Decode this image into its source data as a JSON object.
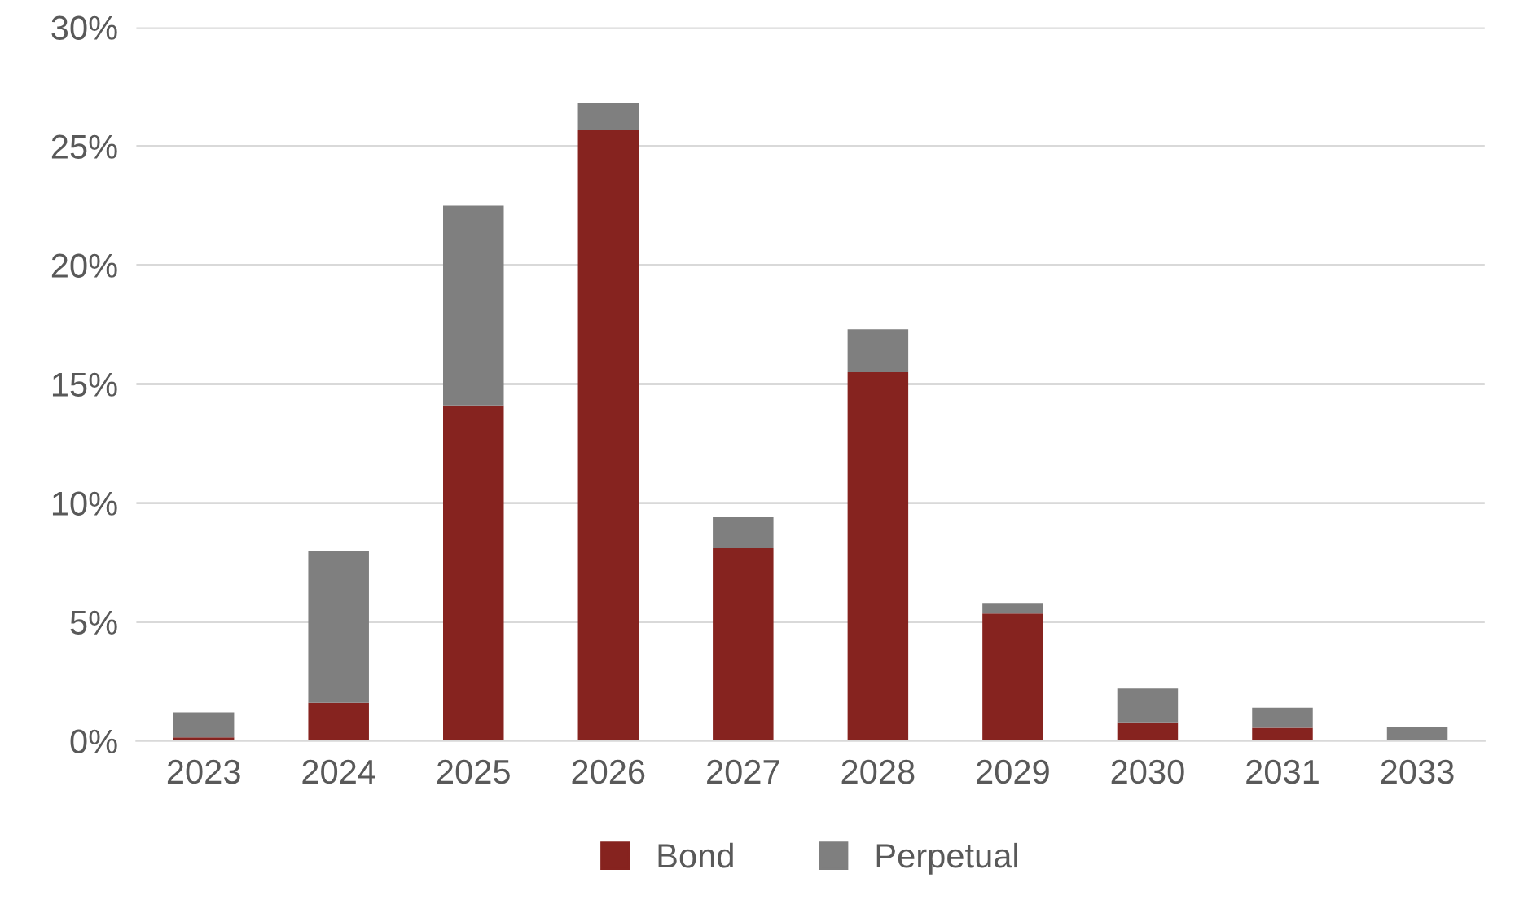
{
  "chart_data": {
    "type": "bar",
    "stacked": true,
    "categories": [
      "2023",
      "2024",
      "2025",
      "2026",
      "2027",
      "2028",
      "2029",
      "2030",
      "2031",
      "2033"
    ],
    "series": [
      {
        "name": "Bond",
        "color": "#86231f",
        "values": [
          0.15,
          1.6,
          14.1,
          25.7,
          8.1,
          15.5,
          5.35,
          0.75,
          0.55,
          0
        ]
      },
      {
        "name": "Perpetual",
        "color": "#7f7f7f",
        "values": [
          1.05,
          6.4,
          8.4,
          1.1,
          1.3,
          1.8,
          0.45,
          1.45,
          0.85,
          0.6
        ]
      }
    ],
    "ylim": [
      0,
      30
    ],
    "yticks": [
      {
        "value": 0,
        "label": "0%"
      },
      {
        "value": 5,
        "label": "5%"
      },
      {
        "value": 10,
        "label": "10%"
      },
      {
        "value": 15,
        "label": "15%"
      },
      {
        "value": 20,
        "label": "20%"
      },
      {
        "value": 25,
        "label": "25%"
      },
      {
        "value": 30,
        "label": "30%"
      }
    ],
    "grid": "y",
    "legend": "bottom"
  }
}
